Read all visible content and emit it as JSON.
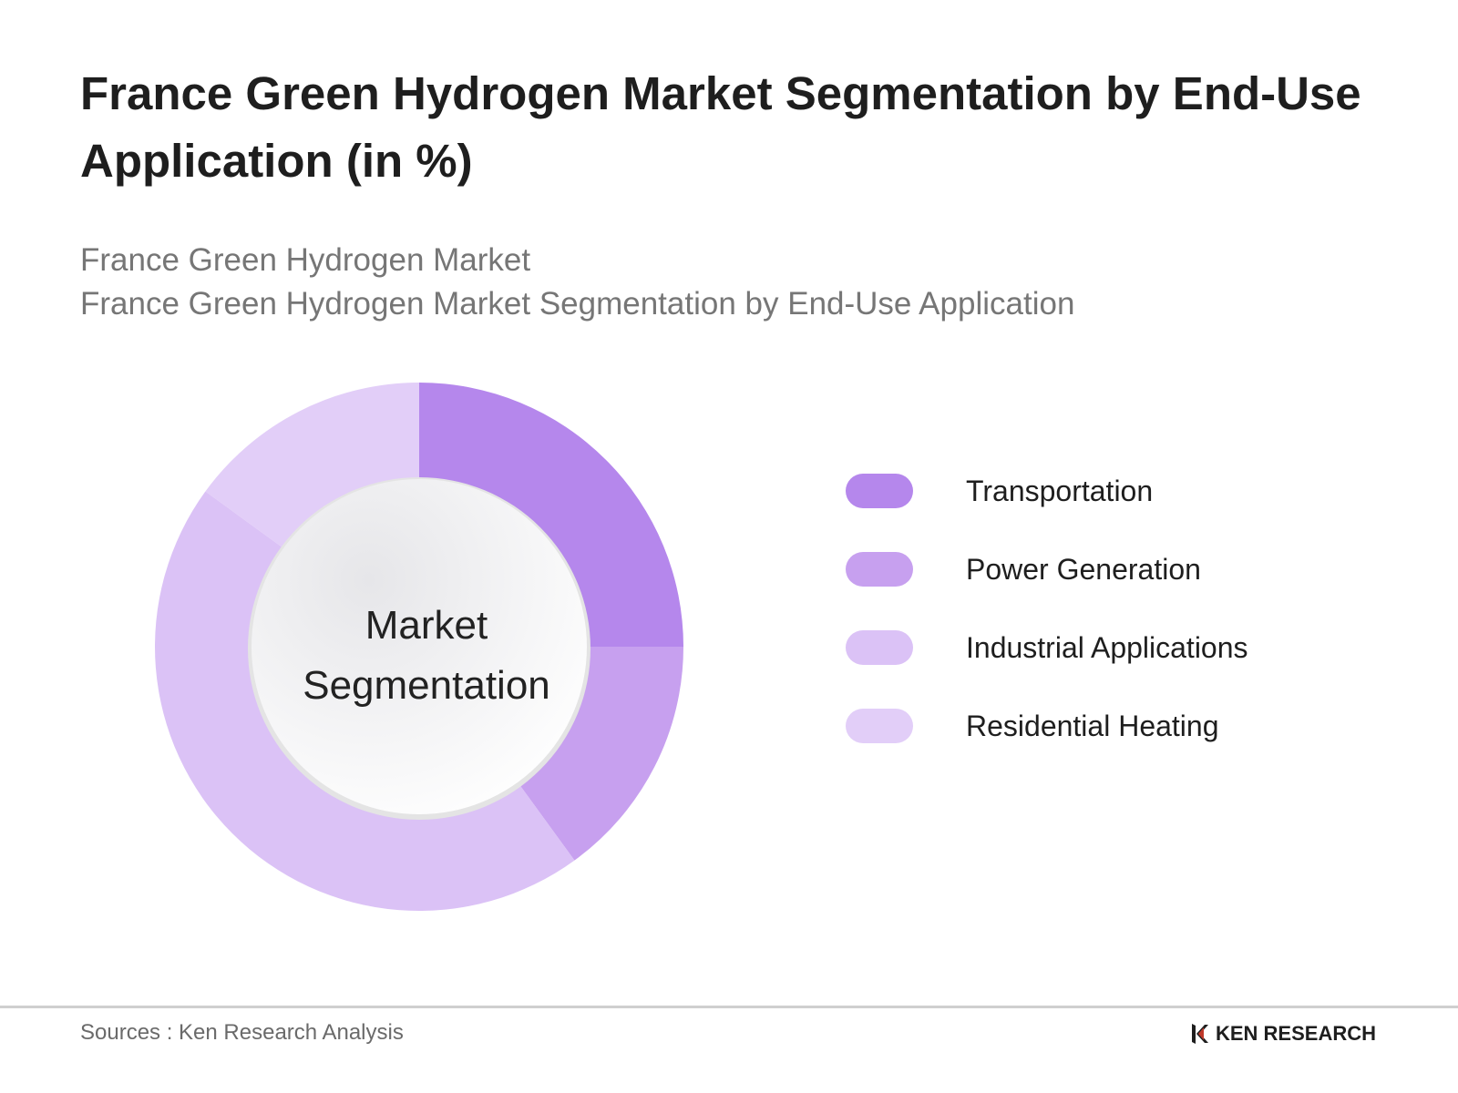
{
  "title": "France Green Hydrogen Market Segmentation by End-Use Application (in %)",
  "subtitle_line1": "France Green Hydrogen Market",
  "subtitle_line2": "France Green Hydrogen Market Segmentation by End-Use Application",
  "center_label_line1": "Market",
  "center_label_line2": "Segmentation",
  "footer": {
    "source": "Sources : Ken Research Analysis",
    "logo_text": "KEN RESEARCH",
    "logo_icon": "ken-research-logo-icon"
  },
  "chart_data": {
    "type": "pie",
    "donut": true,
    "title": "France Green Hydrogen Market Segmentation by End-Use Application (in %)",
    "categories": [
      "Transportation",
      "Power Generation",
      "Industrial Applications",
      "Residential Heating"
    ],
    "values": [
      25,
      15,
      45,
      15
    ],
    "colors": [
      "#b587ec",
      "#c7a0ef",
      "#dbc2f6",
      "#e2cef8"
    ],
    "legend_position": "right"
  }
}
